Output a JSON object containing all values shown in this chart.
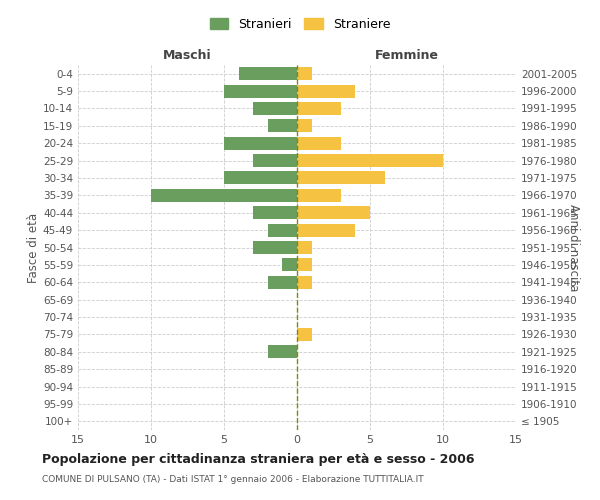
{
  "age_groups": [
    "0-4",
    "5-9",
    "10-14",
    "15-19",
    "20-24",
    "25-29",
    "30-34",
    "35-39",
    "40-44",
    "45-49",
    "50-54",
    "55-59",
    "60-64",
    "65-69",
    "70-74",
    "75-79",
    "80-84",
    "85-89",
    "90-94",
    "95-99",
    "100+"
  ],
  "birth_years": [
    "2001-2005",
    "1996-2000",
    "1991-1995",
    "1986-1990",
    "1981-1985",
    "1976-1980",
    "1971-1975",
    "1966-1970",
    "1961-1965",
    "1956-1960",
    "1951-1955",
    "1946-1950",
    "1941-1945",
    "1936-1940",
    "1931-1935",
    "1926-1930",
    "1921-1925",
    "1916-1920",
    "1911-1915",
    "1906-1910",
    "≤ 1905"
  ],
  "maschi": [
    4,
    5,
    3,
    2,
    5,
    3,
    5,
    10,
    3,
    2,
    3,
    1,
    2,
    0,
    0,
    0,
    2,
    0,
    0,
    0,
    0
  ],
  "femmine": [
    1,
    4,
    3,
    1,
    3,
    10,
    6,
    3,
    5,
    4,
    1,
    1,
    1,
    0,
    0,
    1,
    0,
    0,
    0,
    0,
    0
  ],
  "color_maschi": "#6a9e5e",
  "color_femmine": "#f5c242",
  "title": "Popolazione per cittadinanza straniera per età e sesso - 2006",
  "subtitle": "COMUNE DI PULSANO (TA) - Dati ISTAT 1° gennaio 2006 - Elaborazione TUTTITALIA.IT",
  "ylabel_left": "Fasce di età",
  "ylabel_right": "Anni di nascita",
  "xlabel_left": "Maschi",
  "xlabel_right": "Femmine",
  "legend_stranieri": "Stranieri",
  "legend_straniere": "Straniere",
  "xlim": 15,
  "background_color": "#ffffff",
  "grid_color": "#cccccc"
}
